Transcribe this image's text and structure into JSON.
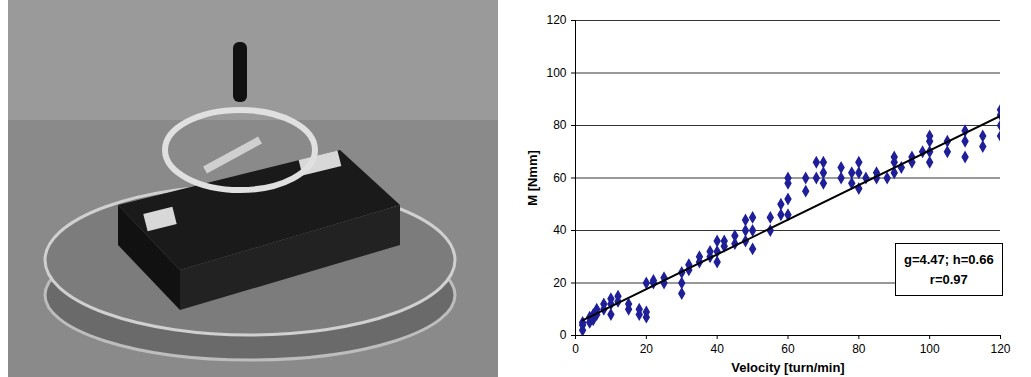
{
  "chart_data": {
    "type": "scatter",
    "xlabel": "Velocity [turn/min]",
    "ylabel": "M [Nmm]",
    "xlim": [
      0,
      120
    ],
    "xticks": [
      0,
      20,
      40,
      60,
      80,
      100,
      120
    ],
    "ylim": [
      0,
      120
    ],
    "yticks": [
      0,
      20,
      40,
      60,
      80,
      100,
      120
    ],
    "grid": "y",
    "annotations": [
      "g=4.47; h=0.66",
      "r=0.97"
    ],
    "series": [
      {
        "type": "scatter",
        "color": "#1f1f99",
        "marker": "diamond",
        "x": [
          2,
          2,
          2,
          4,
          4,
          5,
          5,
          6,
          6,
          8,
          8,
          10,
          10,
          10,
          12,
          12,
          15,
          15,
          18,
          18,
          20,
          20,
          20,
          22,
          22,
          25,
          25,
          30,
          30,
          30,
          32,
          32,
          35,
          35,
          38,
          38,
          40,
          40,
          40,
          42,
          42,
          45,
          45,
          48,
          48,
          48,
          50,
          50,
          50,
          55,
          55,
          58,
          58,
          60,
          60,
          60,
          60,
          65,
          65,
          68,
          68,
          70,
          70,
          70,
          75,
          75,
          78,
          78,
          80,
          80,
          80,
          82,
          85,
          85,
          88,
          90,
          90,
          90,
          92,
          95,
          95,
          98,
          100,
          100,
          100,
          100,
          105,
          105,
          110,
          110,
          110,
          115,
          115,
          120,
          120,
          120,
          120
        ],
        "values": [
          2,
          4,
          5,
          5,
          7,
          6,
          8,
          8,
          10,
          10,
          12,
          8,
          12,
          14,
          13,
          15,
          10,
          12,
          8,
          10,
          7,
          9,
          20,
          20,
          21,
          20,
          22,
          16,
          20,
          24,
          25,
          27,
          28,
          30,
          30,
          32,
          28,
          32,
          36,
          34,
          36,
          35,
          38,
          36,
          40,
          44,
          33,
          40,
          45,
          40,
          45,
          46,
          50,
          46,
          52,
          58,
          60,
          55,
          60,
          60,
          66,
          58,
          62,
          66,
          60,
          64,
          58,
          62,
          56,
          62,
          66,
          60,
          60,
          62,
          60,
          62,
          66,
          68,
          64,
          66,
          68,
          70,
          66,
          70,
          74,
          76,
          70,
          74,
          68,
          74,
          78,
          72,
          76,
          76,
          80,
          84,
          86
        ]
      },
      {
        "type": "line",
        "color": "#000000",
        "x": [
          2,
          120
        ],
        "values": [
          5.8,
          83.7
        ]
      }
    ]
  }
}
